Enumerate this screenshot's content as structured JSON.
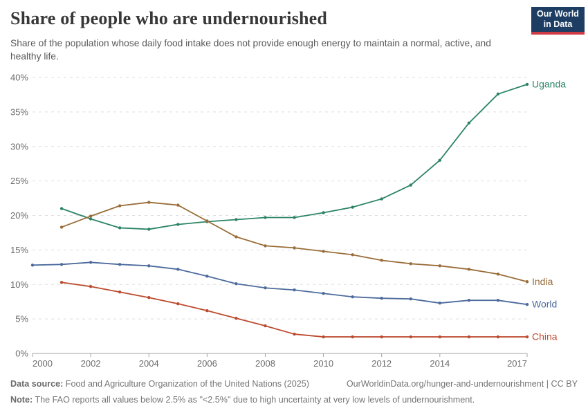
{
  "header": {
    "title": "Share of people who are undernourished",
    "logo": {
      "line1": "Our World",
      "line2": "in Data"
    }
  },
  "subtitle": "Share of the population whose daily food intake does not provide enough energy to maintain a normal, active, and healthy life.",
  "chart_data": {
    "type": "line",
    "title": "Share of people who are undernourished",
    "xlim": [
      2000,
      2017
    ],
    "ylim": [
      0,
      40
    ],
    "y_ticks": [
      0,
      5,
      10,
      15,
      20,
      25,
      30,
      35,
      40
    ],
    "y_tick_suffix": "%",
    "x_tick_labels": [
      2000,
      2002,
      2004,
      2006,
      2008,
      2010,
      2012,
      2014,
      2017
    ],
    "grid": "horizontal dashed",
    "legend_position": "line-end labels",
    "colors": {
      "uganda": "#2c8465",
      "india": "#996d39",
      "world": "#4c6a9c",
      "china": "#bc4a2e",
      "grid": "#dedede",
      "axis": "#a3a3a3",
      "tick_text": "#6b6b6b"
    },
    "series": [
      {
        "name": "Uganda",
        "color": "#2c8465",
        "x": [
          2001,
          2002,
          2003,
          2004,
          2005,
          2006,
          2007,
          2008,
          2009,
          2010,
          2011,
          2012,
          2013,
          2014,
          2015,
          2016,
          2017
        ],
        "values": [
          21.0,
          19.5,
          18.2,
          18.0,
          18.7,
          19.1,
          19.4,
          19.7,
          19.7,
          20.4,
          21.2,
          22.4,
          24.4,
          28.0,
          33.4,
          37.6,
          39.0
        ]
      },
      {
        "name": "India",
        "color": "#996d39",
        "x": [
          2001,
          2002,
          2003,
          2004,
          2005,
          2006,
          2007,
          2008,
          2009,
          2010,
          2011,
          2012,
          2013,
          2014,
          2015,
          2016,
          2017
        ],
        "values": [
          18.3,
          19.9,
          21.4,
          21.9,
          21.5,
          19.2,
          16.9,
          15.6,
          15.3,
          14.8,
          14.3,
          13.5,
          13.0,
          12.7,
          12.2,
          11.5,
          10.4
        ]
      },
      {
        "name": "World",
        "color": "#4c6a9c",
        "x": [
          2000,
          2001,
          2002,
          2003,
          2004,
          2005,
          2006,
          2007,
          2008,
          2009,
          2010,
          2011,
          2012,
          2013,
          2014,
          2015,
          2016,
          2017
        ],
        "values": [
          12.8,
          12.9,
          13.2,
          12.9,
          12.7,
          12.2,
          11.2,
          10.1,
          9.5,
          9.2,
          8.7,
          8.2,
          8.0,
          7.9,
          7.3,
          7.7,
          7.7,
          7.1
        ]
      },
      {
        "name": "China",
        "color": "#bc4a2e",
        "x": [
          2001,
          2002,
          2003,
          2004,
          2005,
          2006,
          2007,
          2008,
          2009,
          2010,
          2011,
          2012,
          2013,
          2014,
          2015,
          2016,
          2017
        ],
        "values": [
          10.3,
          9.7,
          8.9,
          8.1,
          7.2,
          6.2,
          5.1,
          4.0,
          2.8,
          2.4,
          2.4,
          2.4,
          2.4,
          2.4,
          2.4,
          2.4,
          2.4
        ]
      }
    ]
  },
  "footer": {
    "datasource_label": "Data source:",
    "datasource_text": "Food and Agriculture Organization of the United Nations (2025)",
    "url_text": "OurWorldinData.org/hunger-and-undernourishment | CC BY",
    "note_label": "Note:",
    "note_text": "The FAO reports all values below 2.5% as \"<2.5%\" due to high uncertainty at very low levels of undernourishment."
  }
}
